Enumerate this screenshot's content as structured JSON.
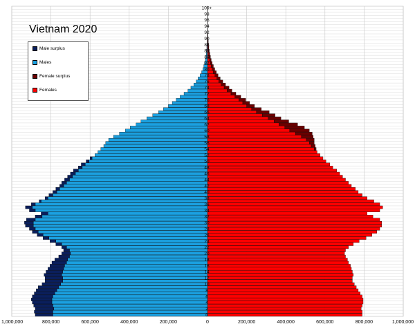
{
  "chart_data": {
    "type": "bar",
    "orientation": "horizontal",
    "layout": "population-pyramid",
    "title": "Vietnam 2020",
    "legend": {
      "placement": "top-left",
      "entries": [
        {
          "key": "male_surplus",
          "label": "Male surplus",
          "color": "#0a1f5c"
        },
        {
          "key": "males",
          "label": "Males",
          "color": "#1ba0e0"
        },
        {
          "key": "female_surplus",
          "label": "Female surplus",
          "color": "#6b0000"
        },
        {
          "key": "females",
          "label": "Females",
          "color": "#ff0000"
        }
      ]
    },
    "x_ticks": [
      "1,000,000",
      "800,000",
      "600,000",
      "400,000",
      "200,000",
      "0",
      "200,000",
      "400,000",
      "600,000",
      "800,000",
      "1,000,000"
    ],
    "xlim": [
      -1000000,
      1000000
    ],
    "y_tick_labels": [
      "100+",
      "98",
      "96",
      "94",
      "92",
      "90",
      "88",
      "86",
      "84",
      "82",
      "80",
      "78",
      "76",
      "74",
      "72",
      "70",
      "68",
      "66",
      "64",
      "62",
      "60",
      "58",
      "56",
      "54",
      "52",
      "50",
      "48",
      "46",
      "44",
      "42",
      "40",
      "38",
      "36",
      "34",
      "32",
      "30",
      "28",
      "26",
      "24",
      "22",
      "20",
      "18",
      "16",
      "14",
      "12",
      "10",
      "8",
      "6",
      "4",
      "2",
      "0"
    ],
    "grid": true,
    "ages": [
      0,
      1,
      2,
      3,
      4,
      5,
      6,
      7,
      8,
      9,
      10,
      11,
      12,
      13,
      14,
      15,
      16,
      17,
      18,
      19,
      20,
      21,
      22,
      23,
      24,
      25,
      26,
      27,
      28,
      29,
      30,
      31,
      32,
      33,
      34,
      35,
      36,
      37,
      38,
      39,
      40,
      41,
      42,
      43,
      44,
      45,
      46,
      47,
      48,
      49,
      50,
      51,
      52,
      53,
      54,
      55,
      56,
      57,
      58,
      59,
      60,
      61,
      62,
      63,
      64,
      65,
      66,
      67,
      68,
      69,
      70,
      71,
      72,
      73,
      74,
      75,
      76,
      77,
      78,
      79,
      80,
      81,
      82,
      83,
      84,
      85,
      86,
      87,
      88,
      89,
      90,
      91,
      92,
      93,
      94,
      95,
      96,
      97,
      98,
      99,
      100
    ],
    "males": [
      880000,
      885000,
      880000,
      888000,
      895000,
      900000,
      895000,
      885000,
      875000,
      865000,
      845000,
      830000,
      830000,
      835000,
      825000,
      815000,
      805000,
      795000,
      780000,
      760000,
      745000,
      735000,
      745000,
      775000,
      805000,
      840000,
      870000,
      895000,
      910000,
      930000,
      935000,
      925000,
      880000,
      850000,
      910000,
      930000,
      900000,
      860000,
      830000,
      810000,
      790000,
      775000,
      755000,
      745000,
      730000,
      715000,
      700000,
      685000,
      660000,
      645000,
      620000,
      600000,
      575000,
      560000,
      545000,
      530000,
      520000,
      505000,
      480000,
      450000,
      420000,
      395000,
      365000,
      340000,
      310000,
      280000,
      250000,
      225000,
      200000,
      180000,
      160000,
      140000,
      120000,
      100000,
      85000,
      70000,
      58000,
      48000,
      38000,
      30000,
      24000,
      19000,
      15000,
      11000,
      8500,
      6500,
      4800,
      3600,
      2600,
      1900,
      1400,
      1000,
      700,
      500,
      350,
      250,
      170,
      110,
      70,
      45,
      80
    ],
    "females": [
      790000,
      790000,
      785000,
      790000,
      795000,
      795000,
      790000,
      780000,
      770000,
      760000,
      750000,
      740000,
      740000,
      745000,
      740000,
      735000,
      730000,
      720000,
      715000,
      705000,
      700000,
      705000,
      720000,
      745000,
      775000,
      810000,
      840000,
      865000,
      880000,
      890000,
      890000,
      880000,
      845000,
      815000,
      880000,
      895000,
      880000,
      850000,
      815000,
      790000,
      770000,
      755000,
      735000,
      720000,
      705000,
      690000,
      675000,
      660000,
      640000,
      625000,
      605000,
      590000,
      575000,
      560000,
      555000,
      550000,
      545000,
      545000,
      540000,
      535000,
      520000,
      495000,
      460000,
      415000,
      375000,
      345000,
      315000,
      275000,
      240000,
      215000,
      195000,
      170000,
      145000,
      125000,
      110000,
      92000,
      78000,
      65000,
      54000,
      45000,
      37000,
      30000,
      24000,
      19000,
      15000,
      12000,
      9000,
      7000,
      5200,
      4000,
      3000,
      2200,
      1600,
      1100,
      800,
      550,
      380,
      250,
      160,
      100,
      180
    ]
  }
}
